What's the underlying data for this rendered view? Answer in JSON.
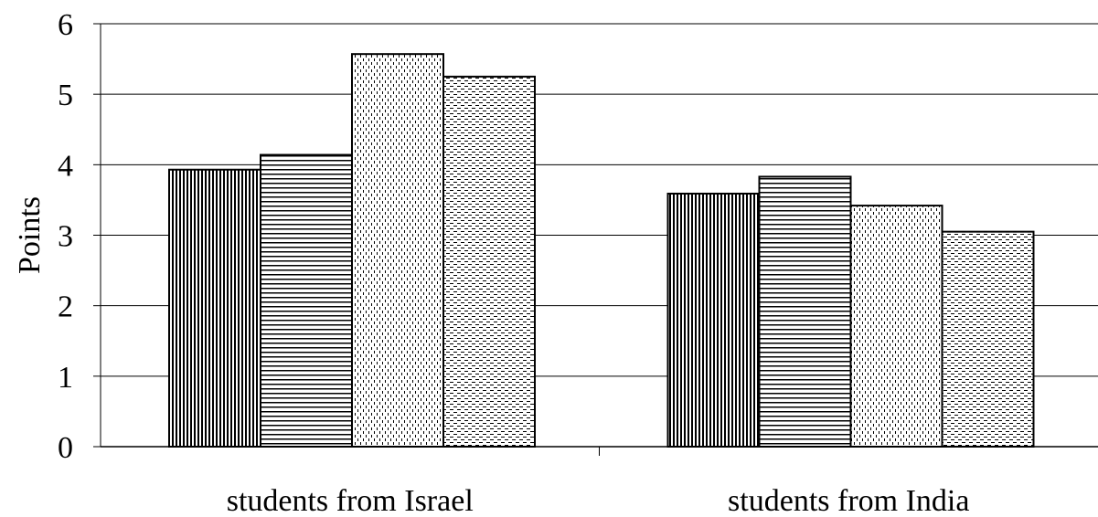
{
  "chart_data": {
    "type": "bar",
    "title": "",
    "xlabel": "",
    "ylabel": "Points",
    "ylim": [
      0,
      6
    ],
    "yticks": [
      "0",
      "1",
      "2",
      "3",
      "4",
      "5",
      "6"
    ],
    "grid": "horizontal",
    "legend": "none",
    "categories": [
      "students from Israel",
      "students from India"
    ],
    "series": [
      {
        "pattern": "vertical-lines",
        "values": [
          3.93,
          3.59
        ]
      },
      {
        "pattern": "horizontal-lines",
        "values": [
          4.14,
          3.83
        ]
      },
      {
        "pattern": "dotted-vertical-dashes",
        "values": [
          5.57,
          3.42
        ]
      },
      {
        "pattern": "dashed-horizontal",
        "values": [
          5.25,
          3.05
        ]
      }
    ]
  }
}
